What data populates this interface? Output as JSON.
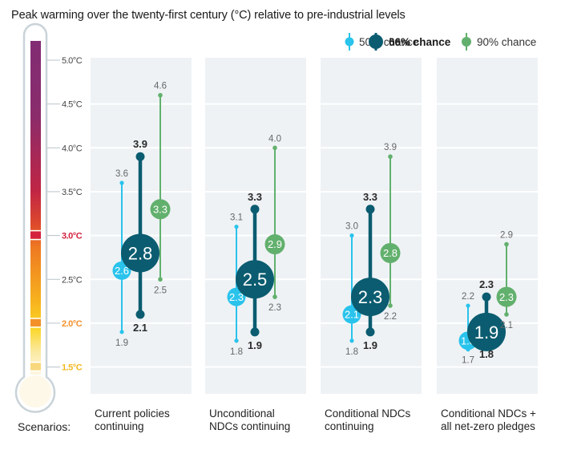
{
  "title": "Peak warming over the twenty-first century (°C) relative to pre-industrial levels",
  "legend": [
    {
      "label": "50% chance",
      "color": "#29c3ec",
      "bold": false
    },
    {
      "label": "66% chance",
      "color": "#0b5c70",
      "bold": true
    },
    {
      "label": "90% chance",
      "color": "#62b06d",
      "bold": false
    }
  ],
  "scenarios_label": "Scenarios:",
  "chart_data": {
    "type": "range-dot",
    "title": "Peak warming over the twenty-first century (°C) relative to pre-industrial levels",
    "ylabel": "°C",
    "ylim": [
      1.2,
      5.2
    ],
    "yticks": [
      {
        "value": 5.0,
        "label": "5.0°C",
        "color": "#444444"
      },
      {
        "value": 4.5,
        "label": "4.5°C",
        "color": "#444444"
      },
      {
        "value": 4.0,
        "label": "4.0°C",
        "color": "#444444"
      },
      {
        "value": 3.5,
        "label": "3.5°C",
        "color": "#444444"
      },
      {
        "value": 3.0,
        "label": "3.0°C",
        "color": "#d4213d"
      },
      {
        "value": 2.5,
        "label": "2.5°C",
        "color": "#444444"
      },
      {
        "value": 2.0,
        "label": "2.0°C",
        "color": "#f3902a"
      },
      {
        "value": 1.5,
        "label": "1.5°C",
        "color": "#f5b820"
      }
    ],
    "grid": true,
    "legend_position": "top-right",
    "categories": [
      "Current policies\ncontinuing",
      "Unconditional\nNDCs continuing",
      "Conditional NDCs\ncontinuing",
      "Conditional NDCs +\nall net-zero pledges"
    ],
    "series": [
      {
        "name": "50% chance",
        "color": "#29c3ec",
        "central": [
          2.6,
          2.3,
          2.1,
          1.8
        ],
        "low": [
          1.9,
          1.8,
          1.8,
          1.7
        ],
        "high": [
          3.6,
          3.1,
          3.0,
          2.2
        ]
      },
      {
        "name": "66% chance",
        "color": "#0b5c70",
        "central": [
          2.8,
          2.5,
          2.3,
          1.9
        ],
        "low": [
          2.1,
          1.9,
          1.9,
          1.8
        ],
        "high": [
          3.9,
          3.3,
          3.3,
          2.3
        ]
      },
      {
        "name": "90% chance",
        "color": "#62b06d",
        "central": [
          3.3,
          2.9,
          2.8,
          2.3
        ],
        "low": [
          2.5,
          2.3,
          2.2,
          2.1
        ],
        "high": [
          4.6,
          4.0,
          3.9,
          2.9
        ]
      }
    ],
    "thermometer": {
      "max_value": 5.2,
      "markers": [
        3.0,
        2.0,
        1.5
      ]
    }
  }
}
